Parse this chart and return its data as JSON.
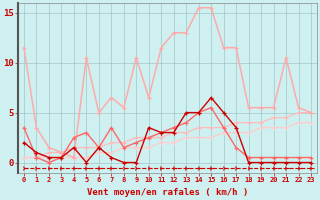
{
  "x": [
    0,
    1,
    2,
    3,
    4,
    5,
    6,
    7,
    8,
    9,
    10,
    11,
    12,
    13,
    14,
    15,
    16,
    17,
    18,
    19,
    20,
    21,
    22,
    23
  ],
  "line_rafales": [
    11.5,
    3.5,
    1.5,
    1.0,
    0.5,
    10.5,
    5.0,
    6.5,
    5.5,
    10.5,
    6.5,
    11.5,
    13.0,
    13.0,
    15.5,
    15.5,
    11.5,
    11.5,
    5.5,
    5.5,
    5.5,
    10.5,
    5.5,
    5.0
  ],
  "line_dark": [
    2.0,
    1.0,
    0.5,
    0.5,
    1.5,
    0.0,
    1.5,
    0.5,
    0.0,
    0.0,
    3.5,
    3.0,
    3.0,
    5.0,
    5.0,
    6.5,
    5.0,
    3.5,
    0.0,
    0.0,
    0.0,
    0.0,
    0.0,
    0.0
  ],
  "line_med": [
    3.5,
    0.5,
    0.0,
    0.5,
    2.5,
    3.0,
    1.5,
    3.5,
    1.5,
    2.0,
    2.5,
    3.0,
    3.5,
    4.0,
    5.0,
    5.5,
    3.5,
    1.5,
    0.5,
    0.5,
    0.5,
    0.5,
    0.5,
    0.5
  ],
  "line_trend1": [
    0.5,
    0.5,
    1.0,
    1.0,
    1.5,
    1.5,
    1.5,
    2.0,
    2.0,
    2.5,
    2.5,
    2.5,
    3.0,
    3.0,
    3.5,
    3.5,
    3.5,
    4.0,
    4.0,
    4.0,
    4.5,
    4.5,
    5.0,
    5.0
  ],
  "line_trend2": [
    0.5,
    0.5,
    0.5,
    0.5,
    0.5,
    0.5,
    1.0,
    1.0,
    1.5,
    1.5,
    1.5,
    2.0,
    2.0,
    2.5,
    2.5,
    2.5,
    3.0,
    3.0,
    3.0,
    3.5,
    3.5,
    3.5,
    4.0,
    4.0
  ],
  "line_bottom": [
    -0.5,
    -0.5,
    -0.5,
    -0.5,
    -0.5,
    -0.5,
    -0.5,
    -0.5,
    -0.5,
    -0.5,
    -0.5,
    -0.5,
    -0.5,
    -0.5,
    -0.5,
    -0.5,
    -0.5,
    -0.5,
    -0.5,
    -0.5,
    -0.5,
    -0.5,
    -0.5,
    -0.5
  ],
  "bg_color": "#cff0f0",
  "color_rafales": "#ffaaaa",
  "color_dark": "#cc0000",
  "color_med": "#ff6666",
  "color_trend1": "#ffbbbb",
  "color_trend2": "#ffcccc",
  "color_bottom": "#cc0000",
  "xlabel": "Vent moyen/en rafales ( km/h )",
  "ylim": [
    -1,
    16
  ],
  "xlim": [
    -0.5,
    23.5
  ],
  "yticks": [
    0,
    5,
    10,
    15
  ],
  "xticks": [
    0,
    1,
    2,
    3,
    4,
    5,
    6,
    7,
    8,
    9,
    10,
    11,
    12,
    13,
    14,
    15,
    16,
    17,
    18,
    19,
    20,
    21,
    22,
    23
  ]
}
